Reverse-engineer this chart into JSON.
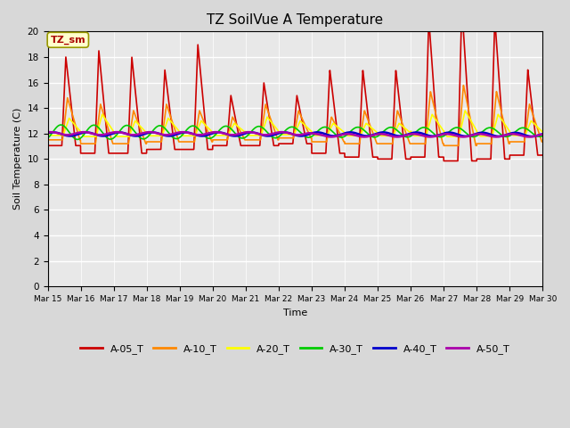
{
  "title": "TZ SoilVue A Temperature",
  "ylabel": "Soil Temperature (C)",
  "xlabel": "Time",
  "annotation": "TZ_sm",
  "ylim": [
    0,
    20
  ],
  "yticks": [
    0,
    2,
    4,
    6,
    8,
    10,
    12,
    14,
    16,
    18,
    20
  ],
  "plot_bg_color": "#e8e8e8",
  "fig_bg_color": "#d8d8d8",
  "series_colors": {
    "A-05_T": "#cc0000",
    "A-10_T": "#ff8800",
    "A-20_T": "#ffff00",
    "A-30_T": "#00cc00",
    "A-40_T": "#0000cc",
    "A-50_T": "#aa00aa"
  },
  "x_start": 15.0,
  "x_end": 30.0,
  "xtick_positions": [
    15,
    16,
    17,
    18,
    19,
    20,
    21,
    22,
    23,
    24,
    25,
    26,
    27,
    28,
    29,
    30
  ],
  "xtick_labels": [
    "Mar 15",
    "Mar 16",
    "Mar 17",
    "Mar 18",
    "Mar 19",
    "Mar 20",
    "Mar 21",
    "Mar 22",
    "Mar 23",
    "Mar 24",
    "Mar 25",
    "Mar 26",
    "Mar 27",
    "Mar 28",
    "Mar 29",
    "Mar 30"
  ],
  "figsize": [
    6.4,
    4.8
  ],
  "dpi": 100
}
